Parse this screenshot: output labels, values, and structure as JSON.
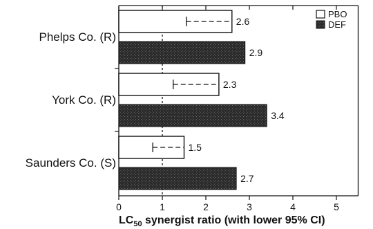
{
  "chart_data": {
    "type": "bar",
    "orientation": "horizontal",
    "categories": [
      "Phelps Co. (R)",
      "York Co. (R)",
      "Saunders Co. (S)"
    ],
    "series": [
      {
        "name": "PBO",
        "values": [
          2.6,
          2.3,
          1.5
        ],
        "ci_lower": [
          1.55,
          1.25,
          0.78
        ],
        "data_labels": [
          "2.6",
          "2.3",
          "1.5"
        ],
        "fill": "#ffffff",
        "pattern": "open"
      },
      {
        "name": "DEF",
        "values": [
          2.9,
          3.4,
          2.7
        ],
        "data_labels": [
          "2.9",
          "3.4",
          "2.7"
        ],
        "fill": "#2a2a2a",
        "pattern": "dark-stipple"
      }
    ],
    "xlabel_main": "LC",
    "xlabel_sub": "50",
    "xlabel_rest": " synergist ratio (with lower 95% CI)",
    "xlim": [
      0,
      5.5
    ],
    "xticks": [
      "0",
      "1",
      "2",
      "3",
      "4",
      "5"
    ],
    "reference_line_x": 1,
    "legend_position": "top-right",
    "grid": false
  }
}
